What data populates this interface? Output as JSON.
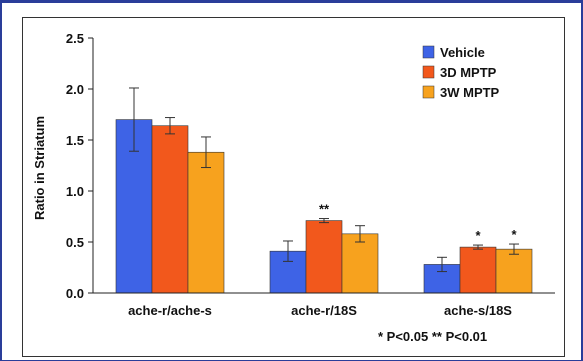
{
  "chart_data": {
    "type": "bar",
    "ylabel": "Ratio in Striatum",
    "ylim": [
      0,
      2.5
    ],
    "yticks": [
      "0.0",
      "0.5",
      "1.0",
      "1.5",
      "2.0",
      "2.5"
    ],
    "categories": [
      "ache-r/ache-s",
      "ache-r/18S",
      "ache-s/18S"
    ],
    "series": [
      {
        "name": "Vehicle",
        "color": "#3e63e6",
        "values": [
          1.7,
          0.41,
          0.28
        ],
        "errors": [
          0.31,
          0.1,
          0.07
        ]
      },
      {
        "name": "3D MPTP",
        "color": "#f2581c",
        "values": [
          1.64,
          0.71,
          0.45
        ],
        "errors": [
          0.08,
          0.02,
          0.02
        ]
      },
      {
        "name": "3W MPTP",
        "color": "#f7a21e",
        "values": [
          1.38,
          0.58,
          0.43
        ],
        "errors": [
          0.15,
          0.08,
          0.05
        ]
      }
    ],
    "significance": [
      [
        "",
        "",
        ""
      ],
      [
        "",
        "**",
        "*"
      ],
      [
        "",
        "",
        "*"
      ]
    ],
    "footnote": "* P<0.05  ** P<0.01",
    "legend_position": "top-right",
    "grid": false
  }
}
